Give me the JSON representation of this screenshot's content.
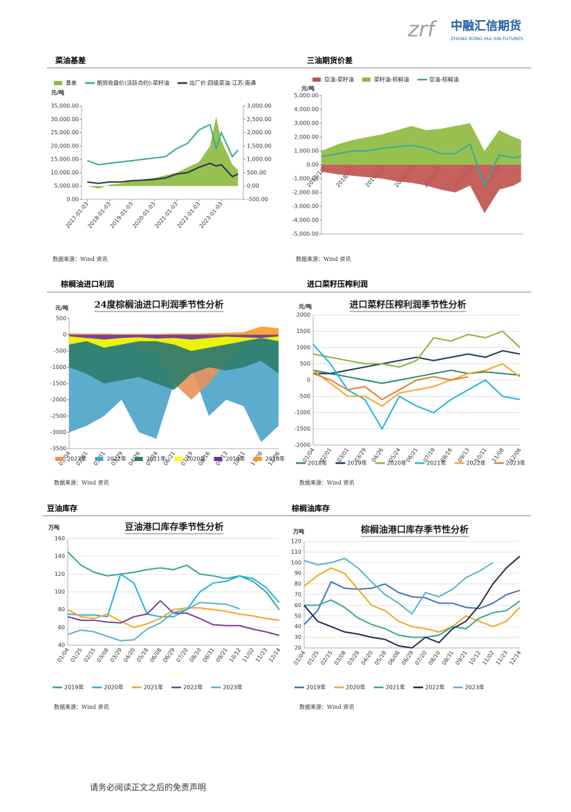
{
  "header": {
    "logo_mark": "zrf",
    "logo_text": "中融汇信期货",
    "logo_sub": "ZHONG RONG HUI XIN FUTURES"
  },
  "footer": "请务必阅读正文之后的免责声明",
  "chart_data": [
    {
      "type": "line",
      "heading": "菜油基差",
      "source": "数据来源：Wind 资讯",
      "y_label": "元/吨",
      "x": [
        "2017-01-03",
        "2017-07-03",
        "2018-01-03",
        "2018-07-03",
        "2019-01-03",
        "2019-07-03",
        "2020-01-03",
        "2020-07-03",
        "2021-01-03",
        "2021-07-03",
        "2022-01-03",
        "2022-07-03",
        "2022-10-10",
        "2023-01-03",
        "2023-07-03",
        "2023-10-03"
      ],
      "xlim": [
        "2016-10-01",
        "2023-12-29"
      ],
      "xticks": [
        "2017-01-03",
        "2018-01-03",
        "2019-01-03",
        "2020-01-03",
        "2021-01-03",
        "2022-01-03",
        "2023-01-03"
      ],
      "ylim": [
        0,
        35000
      ],
      "yticks": [
        {
          "value": 0,
          "label": "0.00"
        },
        {
          "value": 5000,
          "label": "5,000.00"
        },
        {
          "value": 10000,
          "label": "10,000.00"
        },
        {
          "value": 15000,
          "label": "15,000.00"
        },
        {
          "value": 20000,
          "label": "20,000.00"
        },
        {
          "value": 25000,
          "label": "25,000.00"
        },
        {
          "value": 30000,
          "label": "30,000.00"
        },
        {
          "value": 35000,
          "label": "35,000.00"
        }
      ],
      "y2lim": [
        -500,
        3000
      ],
      "y2ticks": [
        {
          "value": -500,
          "label": "-500.00"
        },
        {
          "value": 0,
          "label": "0.00"
        },
        {
          "value": 500,
          "label": "500.00"
        },
        {
          "value": 1000,
          "label": "1,000.00"
        },
        {
          "value": 1500,
          "label": "1,500.00"
        },
        {
          "value": 2000,
          "label": "2,000.00"
        },
        {
          "value": 2500,
          "label": "2,500.00"
        },
        {
          "value": 3000,
          "label": "3,000.00"
        }
      ],
      "grid": false,
      "legend": "top",
      "series": [
        {
          "name": "基差",
          "color": "#8db93e",
          "mark": "area",
          "axis": "y2",
          "values": [
            0,
            -100,
            50,
            100,
            200,
            250,
            300,
            400,
            500,
            700,
            900,
            1500,
            2600,
            1700,
            800,
            600
          ]
        },
        {
          "name": "期货收盘价(活跃合约):菜籽油",
          "color": "#3aa99b",
          "mark": "line",
          "values": [
            14500,
            13000,
            13500,
            14000,
            14500,
            15000,
            15500,
            16000,
            19000,
            21000,
            26000,
            28000,
            19000,
            25000,
            16000,
            18500
          ]
        },
        {
          "name": "出厂价:四级菜油:江苏:南通",
          "color": "#1f3550",
          "mark": "line",
          "values": [
            6500,
            6000,
            6500,
            6500,
            7000,
            7200,
            7500,
            8000,
            9500,
            10000,
            12000,
            13500,
            12500,
            13000,
            8500,
            9500
          ]
        }
      ]
    },
    {
      "type": "line",
      "heading": "三油期货价差",
      "source": "数据来源：Wind 资讯",
      "y_label": "元/吨",
      "x": [
        "2016/12/1",
        "2017/7/3",
        "2018/1/3",
        "2018/7/3",
        "2019/1/3",
        "2019/7/3",
        "2020/1/3",
        "2020/7/3",
        "2021/1/3",
        "2021/7/3",
        "2022/1/3",
        "2022/7/3",
        "2023/1/3",
        "2023/7/3",
        "2023/10/3"
      ],
      "xlim": [
        "2016/12/1",
        "2023/10/31"
      ],
      "xticks": [
        "2017/1/3",
        "2018/1/3",
        "2019/1/3",
        "2020/1/3",
        "2021/1/3",
        "2022/1/3",
        "2023/1/3"
      ],
      "ylim": [
        -5000,
        5000
      ],
      "yticks": [
        {
          "value": -5000,
          "label": "-5,000.00"
        },
        {
          "value": -4000,
          "label": "-4,000.00"
        },
        {
          "value": -3000,
          "label": "-3,000.00"
        },
        {
          "value": -2000,
          "label": "-2,000.00"
        },
        {
          "value": -1000,
          "label": "-1,000.00"
        },
        {
          "value": 0,
          "label": "0.00"
        },
        {
          "value": 1000,
          "label": "1,000.00"
        },
        {
          "value": 2000,
          "label": "2,000.00"
        },
        {
          "value": 3000,
          "label": "3,000.00"
        },
        {
          "value": 4000,
          "label": "4,000.00"
        },
        {
          "value": 5000,
          "label": "5,000.00"
        }
      ],
      "grid": false,
      "legend": "top",
      "series": [
        {
          "name": "豆油-菜籽油",
          "color": "#c0504d",
          "mark": "area",
          "values": [
            -500,
            -700,
            -800,
            -900,
            -1000,
            -1200,
            -1300,
            -1500,
            -1800,
            -2000,
            -1500,
            -3500,
            -1800,
            -1500,
            -1200
          ]
        },
        {
          "name": "菜籽油-棕榈油",
          "color": "#8db93e",
          "mark": "area",
          "values": [
            1000,
            1500,
            1800,
            2000,
            2200,
            2500,
            2800,
            2500,
            2600,
            2800,
            3000,
            1000,
            2500,
            2000,
            1800
          ]
        },
        {
          "name": "豆油-棕榈油",
          "color": "#3aa99b",
          "mark": "line",
          "values": [
            600,
            800,
            1000,
            1000,
            1200,
            1300,
            1400,
            1200,
            800,
            800,
            1500,
            -1500,
            700,
            500,
            600
          ]
        }
      ]
    },
    {
      "type": "area",
      "heading": "棕榈油进口利润",
      "title": "24度棕榈油进口利润季节性分析",
      "source": "数据来源：Wind 资讯",
      "y_label": "元/吨",
      "categories": [
        "01/04",
        "02/01",
        "03/01",
        "03/29",
        "04/26",
        "05/24",
        "06/21",
        "07/19",
        "08/16",
        "09/13",
        "10/11",
        "11/08",
        "12/06"
      ],
      "ylim": [
        -3500,
        500
      ],
      "yticks": [
        -3500,
        -3000,
        -2500,
        -2000,
        -1500,
        -1000,
        -500,
        0,
        500
      ],
      "grid": false,
      "legend": "bottom",
      "series": [
        {
          "name": "2023年",
          "color": "#e8915a",
          "values": [
            -200,
            -300,
            -300,
            -200,
            -400,
            -600,
            -1500,
            -2000,
            -1500,
            -800,
            -400,
            null,
            null
          ]
        },
        {
          "name": "2022年",
          "color": "#4aa3c9",
          "values": [
            -3000,
            -2800,
            -2500,
            -2000,
            -3000,
            -3200,
            -1500,
            -1000,
            -2500,
            -2000,
            -2200,
            -3300,
            -2800
          ]
        },
        {
          "name": "2021年",
          "color": "#2e7d6b",
          "values": [
            -1000,
            -1200,
            -1500,
            -1400,
            -1300,
            -1500,
            -1700,
            -1200,
            -1000,
            -1100,
            -1000,
            -800,
            -1200
          ]
        },
        {
          "name": "2020年",
          "color": "#ffff00",
          "values": [
            -300,
            -200,
            -400,
            -300,
            -200,
            -200,
            -300,
            -500,
            -400,
            -300,
            -200,
            -100,
            -200
          ]
        },
        {
          "name": "2019年",
          "color": "#7030a0",
          "values": [
            -50,
            -100,
            -150,
            -100,
            -80,
            -120,
            -100,
            -150,
            -100,
            -60,
            -80,
            -100,
            -50
          ]
        },
        {
          "name": "2018年",
          "color": "#f59b23",
          "values": [
            50,
            30,
            40,
            20,
            30,
            20,
            40,
            30,
            50,
            60,
            80,
            250,
            200
          ]
        }
      ]
    },
    {
      "type": "line",
      "heading": "进口菜籽压榨利润",
      "title": "进口菜籽压榨利润季节性分析",
      "source": "数据来源：Wind 资讯",
      "y_label": "元/吨",
      "categories": [
        "01/04",
        "02/01",
        "03/01",
        "03/29",
        "04/26",
        "05/24",
        "06/21",
        "07/19",
        "08/16",
        "09/13",
        "10/11",
        "11/08",
        "12/06"
      ],
      "ylim": [
        -2000,
        2000
      ],
      "yticks": [
        -2000,
        -1500,
        -1000,
        -500,
        0,
        500,
        1000,
        1500,
        2000
      ],
      "grid": true,
      "legend": "bottom",
      "series": [
        {
          "name": "2018年",
          "color": "#2e8b6e",
          "values": [
            300,
            200,
            100,
            0,
            -100,
            0,
            100,
            200,
            300,
            200,
            250,
            200,
            150
          ]
        },
        {
          "name": "2019年",
          "color": "#1f3a5f",
          "values": [
            200,
            200,
            300,
            400,
            500,
            600,
            700,
            600,
            700,
            800,
            700,
            900,
            800
          ]
        },
        {
          "name": "2020年",
          "color": "#8db13c",
          "values": [
            800,
            700,
            600,
            500,
            500,
            400,
            600,
            1300,
            1200,
            1400,
            1300,
            1500,
            1000
          ]
        },
        {
          "name": "2021年",
          "color": "#1fb4e6",
          "values": [
            1100,
            500,
            -300,
            -600,
            -1500,
            -500,
            -800,
            -1000,
            -600,
            -300,
            0,
            -500,
            -600
          ]
        },
        {
          "name": "2022年",
          "color": "#f5a623",
          "values": [
            300,
            -100,
            -500,
            -500,
            -800,
            -400,
            -300,
            -200,
            0,
            200,
            300,
            500,
            100
          ]
        },
        {
          "name": "2023年",
          "color": "#e07b39",
          "values": [
            200,
            0,
            -300,
            -200,
            -600,
            -300,
            0,
            100,
            0,
            100,
            null,
            null,
            null
          ]
        }
      ]
    },
    {
      "type": "line",
      "heading": "豆油库存",
      "title": "豆油港口库存季节性分析",
      "source": "数据来源：Wind 资讯",
      "y_label": "万吨",
      "categories": [
        "01/04",
        "01/25",
        "02/15",
        "03/08",
        "03/29",
        "04/20",
        "05/18",
        "06/08",
        "06/29",
        "07/20",
        "08/10",
        "08/31",
        "09/21",
        "10/12",
        "11/02",
        "11/23",
        "12/14"
      ],
      "ylim": [
        40,
        160
      ],
      "yticks": [
        40,
        60,
        80,
        100,
        120,
        140,
        160
      ],
      "grid": true,
      "legend": "bottom",
      "series": [
        {
          "name": "2019年",
          "color": "#3aa98d",
          "values": [
            145,
            130,
            122,
            118,
            120,
            122,
            125,
            127,
            125,
            130,
            120,
            118,
            115,
            118,
            112,
            100,
            80
          ]
        },
        {
          "name": "2020年",
          "color": "#1fb4e6",
          "values": [
            75,
            74,
            74,
            72,
            120,
            110,
            75,
            72,
            72,
            80,
            100,
            110,
            112,
            118,
            115,
            105,
            88
          ]
        },
        {
          "name": "2021年",
          "color": "#f5a623",
          "values": [
            80,
            72,
            70,
            75,
            67,
            60,
            64,
            70,
            80,
            82,
            82,
            80,
            78,
            75,
            73,
            70,
            68
          ]
        },
        {
          "name": "2022年",
          "color": "#7b3f9e",
          "values": [
            72,
            68,
            68,
            66,
            65,
            72,
            75,
            90,
            76,
            76,
            70,
            63,
            62,
            62,
            58,
            55,
            51
          ]
        },
        {
          "name": "2023年",
          "color": "#5ab4c8",
          "values": [
            52,
            57,
            55,
            50,
            45,
            46,
            58,
            65,
            77,
            80,
            88,
            87,
            86,
            81,
            null,
            null,
            null
          ]
        }
      ]
    },
    {
      "type": "line",
      "heading": "棕榈油库存",
      "title": "棕榈油港口库存季节性分析",
      "source": "数据来源：Wind 资讯",
      "y_label": "万吨",
      "categories": [
        "01/04",
        "01/25",
        "02/15",
        "03/08",
        "03/29",
        "04/20",
        "05/18",
        "06/08",
        "06/29",
        "07/20",
        "08/10",
        "08/31",
        "09/21",
        "10/12",
        "11/02",
        "11/23",
        "12/14"
      ],
      "ylim": [
        20,
        120
      ],
      "yticks": [
        20,
        30,
        40,
        50,
        60,
        70,
        80,
        90,
        100,
        110,
        120
      ],
      "grid": true,
      "legend": "bottom",
      "series": [
        {
          "name": "2019年",
          "color": "#4472c4",
          "values": [
            42,
            55,
            82,
            76,
            75,
            76,
            80,
            72,
            68,
            67,
            62,
            62,
            58,
            57,
            62,
            70,
            74
          ]
        },
        {
          "name": "2020年",
          "color": "#f5a623",
          "values": [
            78,
            88,
            95,
            90,
            75,
            60,
            55,
            45,
            40,
            38,
            35,
            40,
            50,
            45,
            40,
            45,
            58
          ]
        },
        {
          "name": "2021年",
          "color": "#3aa98d",
          "values": [
            60,
            60,
            65,
            58,
            48,
            42,
            38,
            32,
            30,
            30,
            32,
            40,
            38,
            48,
            53,
            55,
            64
          ]
        },
        {
          "name": "2022年",
          "color": "#1f2f4f",
          "values": [
            60,
            45,
            40,
            35,
            33,
            30,
            28,
            22,
            20,
            30,
            25,
            38,
            45,
            60,
            80,
            95,
            106
          ]
        },
        {
          "name": "2023年",
          "color": "#5ab4c8",
          "values": [
            102,
            98,
            100,
            104,
            95,
            82,
            70,
            62,
            52,
            72,
            68,
            75,
            86,
            92,
            100,
            null,
            null
          ]
        }
      ]
    }
  ]
}
